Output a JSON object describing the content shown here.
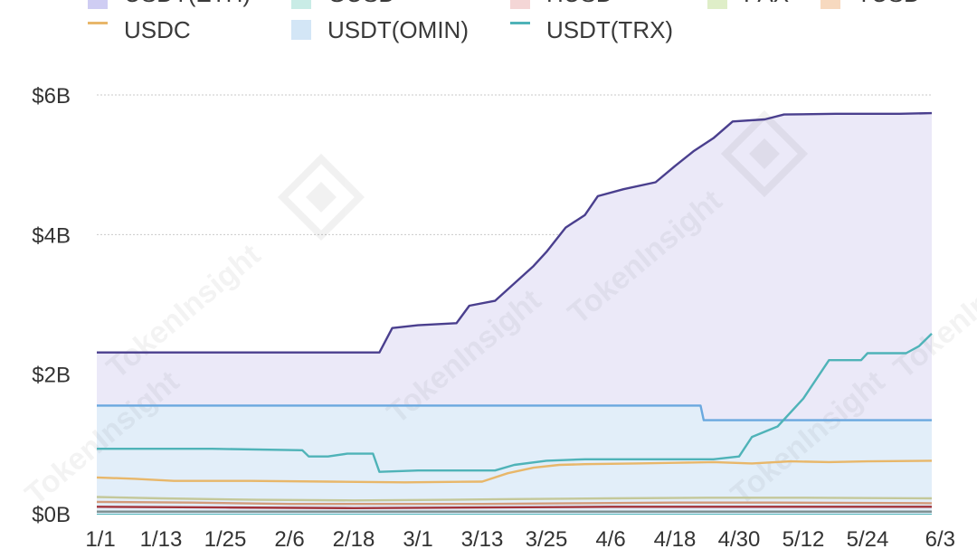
{
  "chart_data": {
    "type": "area",
    "categories": [
      "1/1",
      "1/13",
      "1/25",
      "2/6",
      "2/18",
      "3/1",
      "3/13",
      "3/25",
      "4/6",
      "4/18",
      "4/30",
      "5/12",
      "5/24",
      "6/3"
    ],
    "yticks": [
      "$0B",
      "$2B",
      "$4B",
      "$6B"
    ],
    "ylim": [
      0,
      6
    ],
    "grid": true,
    "legend_position": "top",
    "legend": [
      {
        "label": "USDT(ETH)",
        "color": "#cfcdf3"
      },
      {
        "label": "GUSD",
        "color": "#c9ece6"
      },
      {
        "label": "HUSD",
        "color": "#f4d6d6"
      },
      {
        "label": "PAX",
        "color": "#dfeec8"
      },
      {
        "label": "TUSD",
        "color": "#f7d9bf"
      },
      {
        "label": "USDC",
        "color": "#e8b76a"
      },
      {
        "label": "USDT(OMIN)",
        "color": "#d3e6f6"
      },
      {
        "label": "USDT(TRX)",
        "color": "#4fb3b8"
      }
    ],
    "series": [
      {
        "name": "USDT(ETH)",
        "color": "#4a3f8e",
        "fill": "#ebe9f8",
        "points": [
          [
            0,
            2.31
          ],
          [
            4.4,
            2.31
          ],
          [
            4.6,
            2.66
          ],
          [
            5.0,
            2.7
          ],
          [
            5.6,
            2.73
          ],
          [
            5.8,
            2.98
          ],
          [
            6.2,
            3.05
          ],
          [
            6.5,
            3.3
          ],
          [
            6.8,
            3.55
          ],
          [
            7.0,
            3.75
          ],
          [
            7.3,
            4.1
          ],
          [
            7.6,
            4.28
          ],
          [
            7.8,
            4.55
          ],
          [
            8.2,
            4.65
          ],
          [
            8.7,
            4.75
          ],
          [
            9.0,
            4.98
          ],
          [
            9.3,
            5.2
          ],
          [
            9.6,
            5.38
          ],
          [
            9.9,
            5.62
          ],
          [
            10.4,
            5.65
          ],
          [
            10.7,
            5.72
          ],
          [
            11.5,
            5.73
          ],
          [
            12.5,
            5.73
          ],
          [
            13.0,
            5.74
          ]
        ]
      },
      {
        "name": "USDT(OMIN)",
        "color": "#6aa8df",
        "fill": "#e2eef9",
        "points": [
          [
            0,
            1.55
          ],
          [
            2.5,
            1.55
          ],
          [
            4.6,
            1.55
          ],
          [
            6.8,
            1.55
          ],
          [
            9.0,
            1.55
          ],
          [
            9.4,
            1.55
          ],
          [
            9.45,
            1.34
          ],
          [
            13.0,
            1.34
          ]
        ]
      },
      {
        "name": "USDT(TRX)",
        "color": "#4fb3b8",
        "fill": "none",
        "points": [
          [
            0,
            0.93
          ],
          [
            1.8,
            0.93
          ],
          [
            3.2,
            0.91
          ],
          [
            3.3,
            0.82
          ],
          [
            3.6,
            0.82
          ],
          [
            3.9,
            0.86
          ],
          [
            4.3,
            0.86
          ],
          [
            4.4,
            0.6
          ],
          [
            5.0,
            0.62
          ],
          [
            5.6,
            0.62
          ],
          [
            6.2,
            0.62
          ],
          [
            6.5,
            0.7
          ],
          [
            7.0,
            0.76
          ],
          [
            7.6,
            0.78
          ],
          [
            8.8,
            0.78
          ],
          [
            9.6,
            0.78
          ],
          [
            10.0,
            0.82
          ],
          [
            10.2,
            1.1
          ],
          [
            10.6,
            1.25
          ],
          [
            11.0,
            1.65
          ],
          [
            11.4,
            2.2
          ],
          [
            11.9,
            2.2
          ],
          [
            12.0,
            2.3
          ],
          [
            12.6,
            2.3
          ],
          [
            12.8,
            2.4
          ],
          [
            13.0,
            2.58
          ]
        ]
      },
      {
        "name": "USDC",
        "color": "#e8b76a",
        "fill": "none",
        "points": [
          [
            0,
            0.52
          ],
          [
            0.6,
            0.5
          ],
          [
            1.2,
            0.47
          ],
          [
            2.4,
            0.47
          ],
          [
            3.6,
            0.46
          ],
          [
            4.8,
            0.45
          ],
          [
            6.0,
            0.46
          ],
          [
            6.4,
            0.58
          ],
          [
            6.8,
            0.66
          ],
          [
            7.2,
            0.7
          ],
          [
            7.6,
            0.71
          ],
          [
            8.4,
            0.72
          ],
          [
            9.0,
            0.73
          ],
          [
            9.6,
            0.74
          ],
          [
            10.2,
            0.72
          ],
          [
            10.8,
            0.75
          ],
          [
            11.4,
            0.74
          ],
          [
            12.0,
            0.75
          ],
          [
            13.0,
            0.76
          ]
        ]
      },
      {
        "name": "PAX",
        "color": "#c4c89a",
        "fill": "none",
        "points": [
          [
            0,
            0.24
          ],
          [
            1.0,
            0.22
          ],
          [
            2.5,
            0.2
          ],
          [
            4.0,
            0.19
          ],
          [
            5.5,
            0.2
          ],
          [
            6.5,
            0.21
          ],
          [
            8.0,
            0.22
          ],
          [
            9.5,
            0.23
          ],
          [
            11.0,
            0.23
          ],
          [
            13.0,
            0.22
          ]
        ]
      },
      {
        "name": "TUSD",
        "color": "#d39a7a",
        "fill": "none",
        "points": [
          [
            0,
            0.17
          ],
          [
            1.5,
            0.16
          ],
          [
            3.0,
            0.14
          ],
          [
            4.5,
            0.14
          ],
          [
            6.0,
            0.14
          ],
          [
            7.5,
            0.15
          ],
          [
            9.0,
            0.16
          ],
          [
            10.5,
            0.16
          ],
          [
            13.0,
            0.15
          ]
        ]
      },
      {
        "name": "HUSD",
        "color": "#a3333a",
        "fill": "none",
        "points": [
          [
            0,
            0.1
          ],
          [
            2.0,
            0.09
          ],
          [
            4.0,
            0.08
          ],
          [
            6.0,
            0.09
          ],
          [
            8.0,
            0.1
          ],
          [
            10.0,
            0.1
          ],
          [
            13.0,
            0.1
          ]
        ]
      },
      {
        "name": "GUSD",
        "color": "#7b8e8f",
        "fill": "none",
        "points": [
          [
            0,
            0.03
          ],
          [
            13.0,
            0.03
          ]
        ]
      }
    ]
  },
  "watermark": "TokenInsight"
}
